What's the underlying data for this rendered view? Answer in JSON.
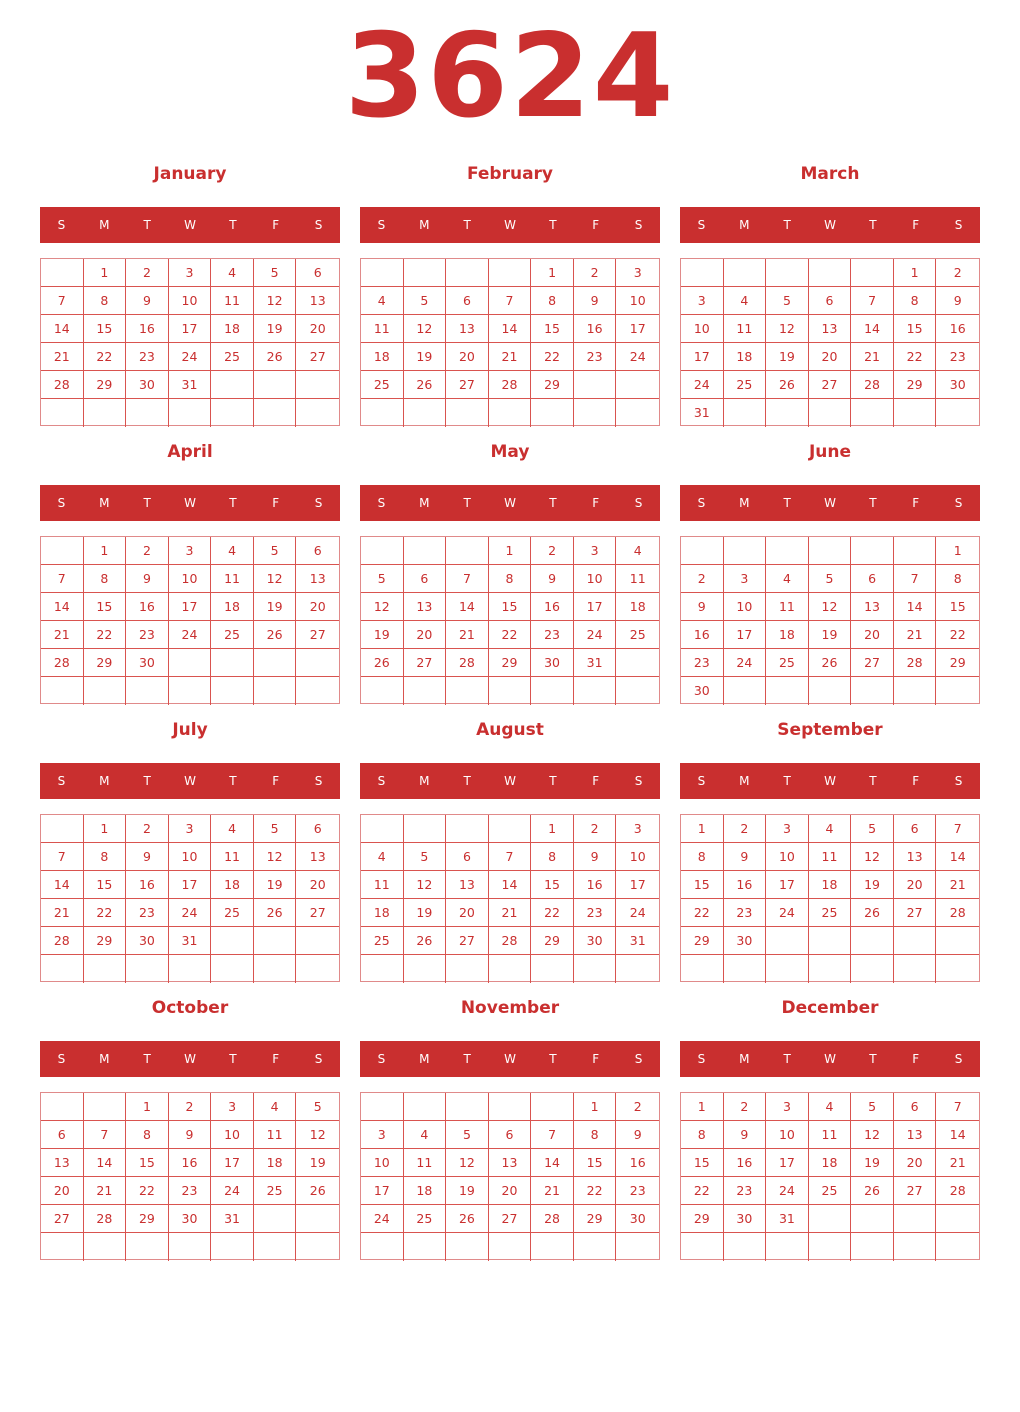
{
  "year": "3624",
  "accent_color": "#c92f2f",
  "weekday_labels": [
    "S",
    "M",
    "T",
    "W",
    "T",
    "F",
    "S"
  ],
  "months": [
    {
      "name": "January",
      "start_weekday": 1,
      "day_count": 31
    },
    {
      "name": "February",
      "start_weekday": 4,
      "day_count": 29
    },
    {
      "name": "March",
      "start_weekday": 5,
      "day_count": 31
    },
    {
      "name": "April",
      "start_weekday": 1,
      "day_count": 30
    },
    {
      "name": "May",
      "start_weekday": 3,
      "day_count": 31
    },
    {
      "name": "June",
      "start_weekday": 6,
      "day_count": 30
    },
    {
      "name": "July",
      "start_weekday": 1,
      "day_count": 31
    },
    {
      "name": "August",
      "start_weekday": 4,
      "day_count": 31
    },
    {
      "name": "September",
      "start_weekday": 0,
      "day_count": 30
    },
    {
      "name": "October",
      "start_weekday": 2,
      "day_count": 31
    },
    {
      "name": "November",
      "start_weekday": 5,
      "day_count": 30
    },
    {
      "name": "December",
      "start_weekday": 0,
      "day_count": 31
    }
  ]
}
